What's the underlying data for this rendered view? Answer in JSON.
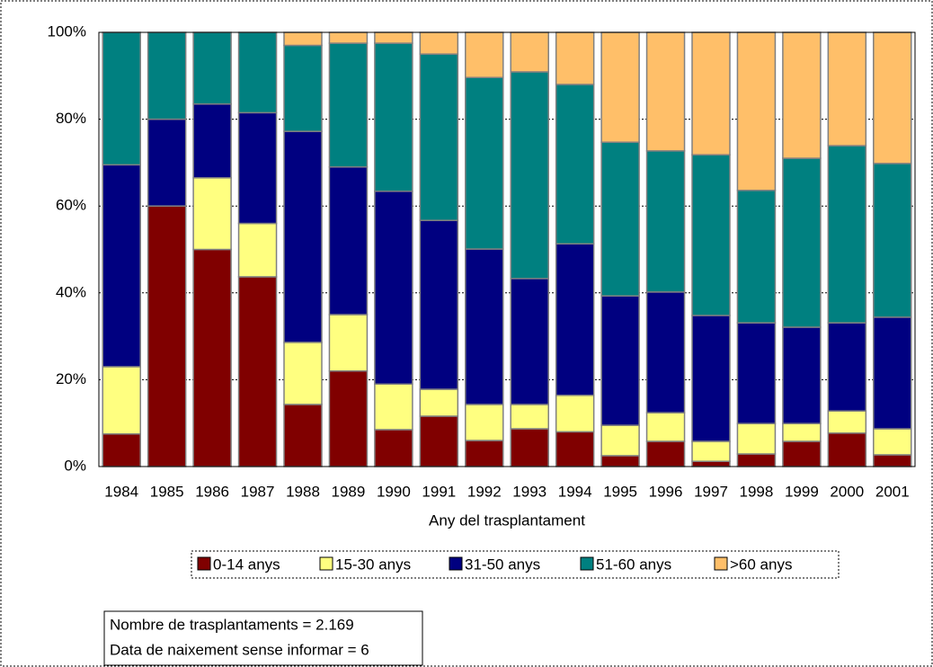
{
  "chart_data": {
    "type": "stacked_bar",
    "x_label": "Any del trasplantament",
    "categories": [
      "1984",
      "1985",
      "1986",
      "1987",
      "1988",
      "1989",
      "1990",
      "1991",
      "1992",
      "1993",
      "1994",
      "1995",
      "1996",
      "1997",
      "1998",
      "1999",
      "2000",
      "2001"
    ],
    "series": [
      {
        "name": "0-14 anys",
        "color": "#800000",
        "values": [
          7.5,
          60,
          50,
          43.7,
          14.3,
          22,
          8.5,
          11.6,
          6,
          8.7,
          8,
          2.5,
          5.8,
          1.2,
          2.9,
          5.8,
          7.7,
          2.7
        ]
      },
      {
        "name": "15-30 anys",
        "color": "#ffff80",
        "values": [
          15.5,
          0,
          16.5,
          12.3,
          14.3,
          13,
          10.5,
          6.2,
          8.3,
          5.6,
          8.4,
          7,
          6.6,
          4.6,
          7,
          4.1,
          5.1,
          6
        ]
      },
      {
        "name": "31-50 anys",
        "color": "#000080",
        "values": [
          46.5,
          20,
          17,
          25.5,
          48.6,
          34,
          44.4,
          38.9,
          35.8,
          29,
          34.9,
          29.8,
          27.8,
          29,
          23.2,
          22.2,
          20.3,
          25.7
        ]
      },
      {
        "name": "51-60 anys",
        "color": "#008080",
        "values": [
          30.5,
          20,
          16.5,
          18.5,
          19.8,
          28.5,
          34.1,
          38.3,
          39.5,
          47.6,
          36.7,
          35.4,
          32.5,
          37,
          30.5,
          38.9,
          40.8,
          35.4
        ]
      },
      {
        "name": ">60 anys",
        "color": "#ffbf69",
        "values": [
          0,
          0,
          0,
          0,
          3,
          2.5,
          2.5,
          5,
          10.4,
          9.1,
          12,
          25.3,
          27.3,
          28.2,
          36.4,
          29,
          26.1,
          30.2
        ]
      }
    ],
    "ylim": [
      0,
      100
    ],
    "yticks": [
      {
        "value": 0,
        "label": "0%"
      },
      {
        "value": 20,
        "label": "20%"
      },
      {
        "value": 40,
        "label": "40%"
      },
      {
        "value": 60,
        "label": "60%"
      },
      {
        "value": 80,
        "label": "80%"
      },
      {
        "value": 100,
        "label": "100%"
      }
    ],
    "grid": true,
    "notes": [
      "Nombre de  trasplantaments = 2.169",
      "Data de naixement sense informar = 6"
    ]
  }
}
